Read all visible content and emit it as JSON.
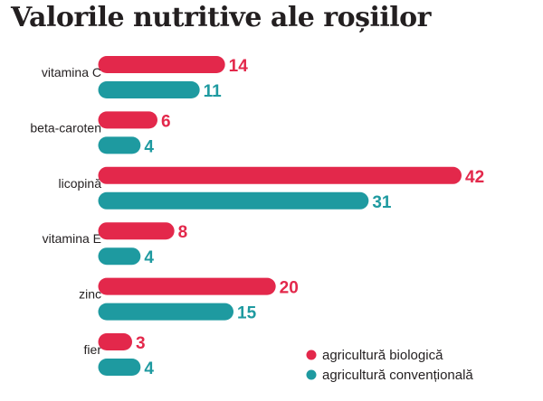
{
  "title": "Valorile nutritive ale roșiilor",
  "colors": {
    "organic": "#e3284b",
    "conventional": "#1e9aa0",
    "background": "#ffffff"
  },
  "chart_data": {
    "type": "bar",
    "orientation": "horizontal",
    "title": "Valorile nutritive ale roșiilor",
    "categories": [
      "vitamina C",
      "beta-caroten",
      "licopină",
      "vitamina E",
      "zinc",
      "fier"
    ],
    "series": [
      {
        "name": "agricultură biologică",
        "color": "#e3284b",
        "values": [
          14,
          6,
          42,
          8,
          20,
          3
        ]
      },
      {
        "name": "agricultură convențională",
        "color": "#1e9aa0",
        "values": [
          11,
          4,
          31,
          4,
          15,
          4
        ]
      }
    ],
    "xlim": [
      0,
      42
    ],
    "grid": false,
    "legend": "bottom-right",
    "data_labels": true
  }
}
